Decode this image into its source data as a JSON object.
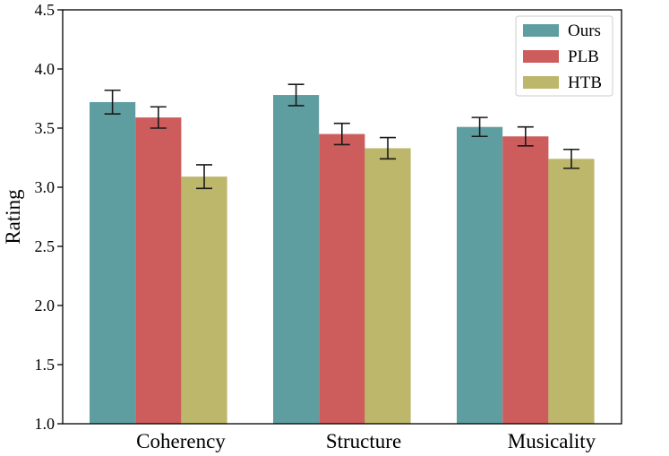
{
  "chart_data": {
    "type": "bar",
    "title": "",
    "xlabel": "",
    "ylabel": "Rating",
    "ylim": [
      1.0,
      4.5
    ],
    "yticks": [
      "1.0",
      "1.5",
      "2.0",
      "2.5",
      "3.0",
      "3.5",
      "4.0",
      "4.5"
    ],
    "grid": false,
    "legend_position": "top-right",
    "categories": [
      "Coherency",
      "Structure",
      "Musicality"
    ],
    "series": [
      {
        "name": "Ours",
        "color": "#5f9ea0",
        "values": [
          3.72,
          3.78,
          3.51
        ],
        "errors": [
          0.1,
          0.09,
          0.08
        ]
      },
      {
        "name": "PLB",
        "color": "#cd5c5c",
        "values": [
          3.59,
          3.45,
          3.43
        ],
        "errors": [
          0.09,
          0.09,
          0.08
        ]
      },
      {
        "name": "HTB",
        "color": "#bdb76b",
        "values": [
          3.09,
          3.33,
          3.24
        ],
        "errors": [
          0.1,
          0.09,
          0.08
        ]
      }
    ]
  }
}
